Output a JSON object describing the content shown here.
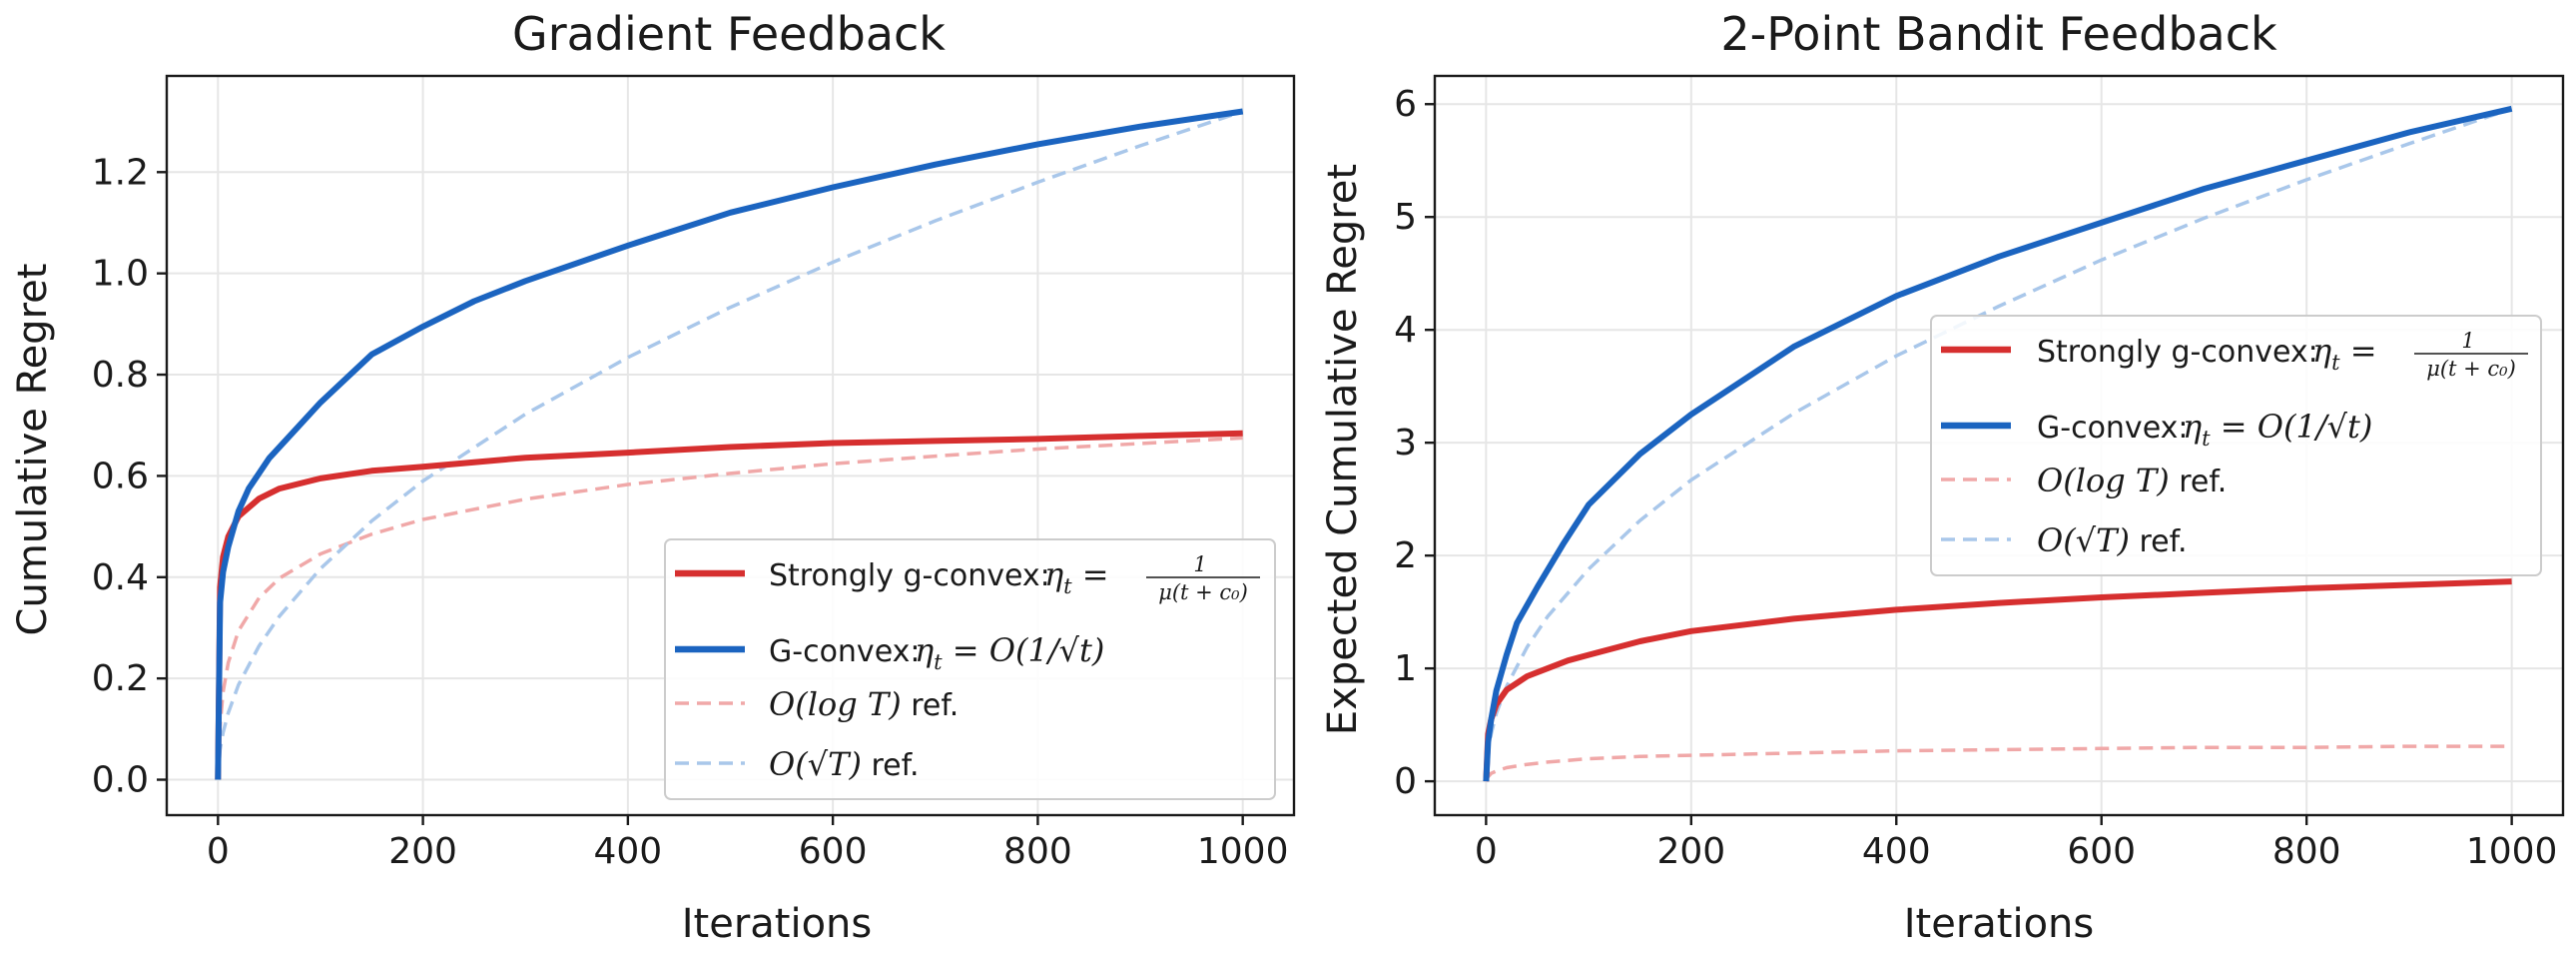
{
  "chart_data": [
    {
      "type": "line",
      "title": "Gradient Feedback",
      "xlabel": "Iterations",
      "ylabel": "Cumulative Regret",
      "xlim": [
        -50,
        1050
      ],
      "ylim": [
        -0.07,
        1.39
      ],
      "xticks": [
        0,
        200,
        400,
        600,
        800,
        1000
      ],
      "yticks": [
        0.0,
        0.2,
        0.4,
        0.6,
        0.8,
        1.0,
        1.2
      ],
      "ytick_labels": [
        "0.0",
        "0.2",
        "0.4",
        "0.6",
        "0.8",
        "1.0",
        "1.2"
      ],
      "grid": true,
      "legend_position": "lower-right",
      "series": [
        {
          "name": "Strongly g-convex: η_t = 1/(μ(t + c_0))",
          "color": "#d62f2f",
          "style": "solid",
          "x": [
            0,
            2,
            5,
            10,
            20,
            40,
            60,
            80,
            100,
            150,
            200,
            250,
            300,
            400,
            500,
            600,
            700,
            800,
            900,
            1000
          ],
          "y": [
            0.0,
            0.38,
            0.44,
            0.48,
            0.52,
            0.555,
            0.575,
            0.585,
            0.595,
            0.61,
            0.618,
            0.627,
            0.636,
            0.646,
            0.657,
            0.665,
            0.669,
            0.673,
            0.679,
            0.684
          ]
        },
        {
          "name": "G-convex: η_t = O(1/√t)",
          "color": "#1b64c0",
          "style": "solid",
          "x": [
            0,
            2,
            5,
            10,
            20,
            30,
            50,
            75,
            100,
            150,
            200,
            250,
            300,
            400,
            500,
            600,
            700,
            800,
            900,
            1000
          ],
          "y": [
            0.0,
            0.35,
            0.41,
            0.46,
            0.53,
            0.575,
            0.635,
            0.69,
            0.745,
            0.84,
            0.895,
            0.945,
            0.985,
            1.055,
            1.12,
            1.17,
            1.215,
            1.255,
            1.29,
            1.32
          ]
        },
        {
          "name": "O(log T) ref.",
          "color": "#f0a8a8",
          "style": "dashed",
          "x": [
            0,
            2,
            5,
            10,
            20,
            40,
            60,
            100,
            150,
            200,
            300,
            400,
            500,
            600,
            700,
            800,
            900,
            1000
          ],
          "y": [
            0.0,
            0.106,
            0.173,
            0.231,
            0.294,
            0.359,
            0.398,
            0.446,
            0.485,
            0.514,
            0.554,
            0.583,
            0.605,
            0.624,
            0.639,
            0.653,
            0.664,
            0.675
          ]
        },
        {
          "name": "O(√T) ref.",
          "color": "#a9c7ea",
          "style": "dashed",
          "x": [
            0,
            2,
            5,
            10,
            20,
            40,
            60,
            100,
            150,
            200,
            300,
            400,
            500,
            600,
            700,
            800,
            900,
            1000
          ],
          "y": [
            0.0,
            0.059,
            0.093,
            0.132,
            0.187,
            0.264,
            0.323,
            0.417,
            0.511,
            0.59,
            0.722,
            0.834,
            0.933,
            1.022,
            1.104,
            1.18,
            1.252,
            1.32
          ]
        }
      ]
    },
    {
      "type": "line",
      "title": "2-Point Bandit Feedback",
      "xlabel": "Iterations",
      "ylabel": "Expected Cumulative Regret",
      "xlim": [
        -50,
        1050
      ],
      "ylim": [
        -0.3,
        6.25
      ],
      "xticks": [
        0,
        200,
        400,
        600,
        800,
        1000
      ],
      "yticks": [
        0,
        1,
        2,
        3,
        4,
        5,
        6
      ],
      "ytick_labels": [
        "0",
        "1",
        "2",
        "3",
        "4",
        "5",
        "6"
      ],
      "grid": true,
      "legend_position": "center-right",
      "series": [
        {
          "name": "Strongly g-convex: η_t = 1/(μ(t + c_0))",
          "color": "#d62f2f",
          "style": "solid",
          "x": [
            0,
            2,
            5,
            10,
            20,
            40,
            60,
            80,
            100,
            150,
            200,
            300,
            400,
            500,
            600,
            700,
            800,
            900,
            1000
          ],
          "y": [
            0.0,
            0.42,
            0.55,
            0.68,
            0.81,
            0.93,
            1.0,
            1.07,
            1.12,
            1.24,
            1.33,
            1.44,
            1.52,
            1.58,
            1.63,
            1.67,
            1.71,
            1.74,
            1.77
          ]
        },
        {
          "name": "G-convex: η_t = O(1/√t)",
          "color": "#1b64c0",
          "style": "solid",
          "x": [
            0,
            2,
            5,
            10,
            20,
            30,
            50,
            75,
            100,
            150,
            200,
            250,
            300,
            400,
            500,
            600,
            700,
            800,
            900,
            1000
          ],
          "y": [
            0.0,
            0.35,
            0.55,
            0.8,
            1.12,
            1.4,
            1.72,
            2.1,
            2.45,
            2.9,
            3.25,
            3.55,
            3.85,
            4.3,
            4.65,
            4.95,
            5.25,
            5.5,
            5.75,
            5.96
          ]
        },
        {
          "name": "O(log T) ref.",
          "color": "#f0a8a8",
          "style": "dashed",
          "x": [
            0,
            2,
            5,
            10,
            20,
            40,
            60,
            100,
            150,
            200,
            300,
            400,
            500,
            600,
            700,
            800,
            900,
            1000
          ],
          "y": [
            0.0,
            0.04,
            0.07,
            0.09,
            0.12,
            0.15,
            0.17,
            0.2,
            0.22,
            0.23,
            0.25,
            0.27,
            0.28,
            0.29,
            0.3,
            0.3,
            0.31,
            0.31
          ]
        },
        {
          "name": "O(√T) ref.",
          "color": "#a9c7ea",
          "style": "dashed",
          "x": [
            0,
            2,
            5,
            10,
            20,
            40,
            60,
            100,
            150,
            200,
            300,
            400,
            500,
            600,
            700,
            800,
            900,
            1000
          ],
          "y": [
            0.0,
            0.27,
            0.42,
            0.6,
            0.84,
            1.19,
            1.46,
            1.88,
            2.31,
            2.67,
            3.26,
            3.77,
            4.21,
            4.62,
            4.99,
            5.33,
            5.65,
            5.96
          ]
        }
      ]
    }
  ]
}
